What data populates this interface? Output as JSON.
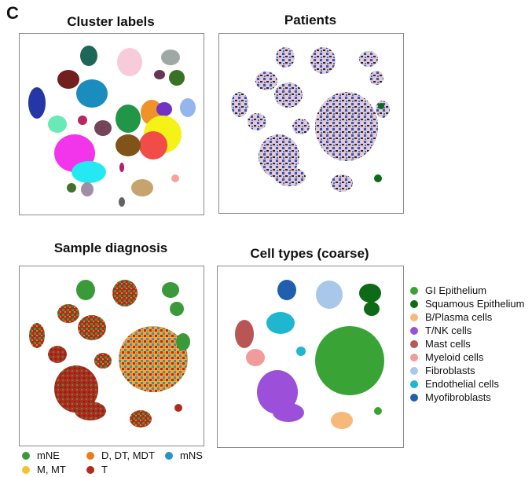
{
  "figure": {
    "panel_letter": "C",
    "titles": {
      "cluster_labels": "Cluster labels",
      "patients": "Patients",
      "sample_diagnosis": "Sample diagnosis",
      "cell_types": "Cell types (coarse)"
    },
    "cell_type_legend": [
      {
        "label": "GI Epithelium",
        "color": "#3aa335"
      },
      {
        "label": "Squamous Epithelium",
        "color": "#0d6a16"
      },
      {
        "label": "B/Plasma cells",
        "color": "#f7b97a"
      },
      {
        "label": "T/NK cells",
        "color": "#9c4fd8"
      },
      {
        "label": "Mast cells",
        "color": "#b85555"
      },
      {
        "label": "Myeloid cells",
        "color": "#f29b9b"
      },
      {
        "label": "Fibroblasts",
        "color": "#a9c7e8"
      },
      {
        "label": "Endothelial cells",
        "color": "#1fb7cf"
      },
      {
        "label": "Myofibroblasts",
        "color": "#1f5fad"
      }
    ],
    "diagnosis_legend": [
      {
        "label": "mNE",
        "color": "#3a9a3a"
      },
      {
        "label": "D, DT, MDT",
        "color": "#f07a1a"
      },
      {
        "label": "mNS",
        "color": "#2a93c7"
      },
      {
        "label": "M, MT",
        "color": "#f2c230"
      },
      {
        "label": "T",
        "color": "#b22a1e"
      }
    ]
  }
}
